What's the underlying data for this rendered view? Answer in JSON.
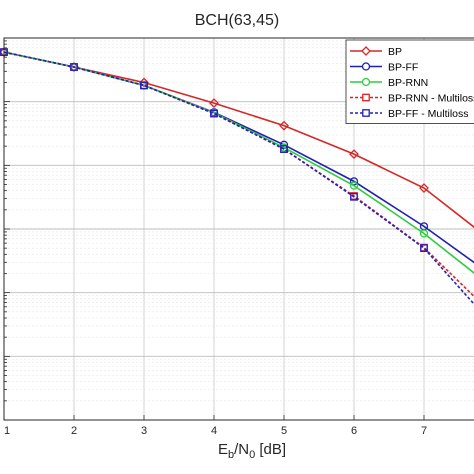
{
  "chart_data": {
    "type": "line",
    "title": "BCH(63,45)",
    "xlabel": {
      "main": "E",
      "sub1": "b",
      "mid": "/N",
      "sub2": "0",
      "rest": " [dB]"
    },
    "ylabel": "",
    "y_scale": "log",
    "x_ticks": [
      "1",
      "2",
      "3",
      "4",
      "5",
      "6",
      "7"
    ],
    "xlim": [
      1,
      7.75
    ],
    "ylim": [
      1e-06,
      1
    ],
    "grid": true,
    "legend_position": "top-right",
    "series": [
      {
        "name": "BP",
        "color": "#d62728",
        "dash": false,
        "marker": "diamond",
        "x": [
          1,
          2,
          3,
          4,
          5,
          6,
          7,
          7.75
        ],
        "y": [
          0.6,
          0.35,
          0.2,
          0.095,
          0.042,
          0.015,
          0.0044,
          0.001
        ]
      },
      {
        "name": "BP-FF",
        "color": "#1f1fb4",
        "dash": false,
        "marker": "circle",
        "x": [
          1,
          2,
          3,
          4,
          5,
          6,
          7,
          7.75
        ],
        "y": [
          0.6,
          0.35,
          0.18,
          0.068,
          0.021,
          0.0056,
          0.0011,
          0.00028
        ]
      },
      {
        "name": "BP-RNN",
        "color": "#2ecc40",
        "dash": false,
        "marker": "circle",
        "x": [
          1,
          2,
          3,
          4,
          5,
          6,
          7,
          7.75
        ],
        "y": [
          0.6,
          0.35,
          0.18,
          0.067,
          0.019,
          0.0048,
          0.00085,
          0.00019
        ]
      },
      {
        "name": "BP-RNN - Multiloss",
        "color": "#e02020",
        "dash": true,
        "marker": "square",
        "x": [
          1,
          2,
          3,
          4,
          5,
          6,
          7,
          7.75
        ],
        "y": [
          0.6,
          0.35,
          0.18,
          0.066,
          0.018,
          0.0033,
          0.00051,
          8e-05
        ]
      },
      {
        "name": "BP-FF - Multiloss",
        "color": "#2020c0",
        "dash": true,
        "marker": "square",
        "x": [
          1,
          2,
          3,
          4,
          5,
          6,
          7,
          7.75
        ],
        "y": [
          0.6,
          0.35,
          0.18,
          0.065,
          0.018,
          0.0032,
          0.0005,
          6e-05
        ]
      }
    ]
  }
}
